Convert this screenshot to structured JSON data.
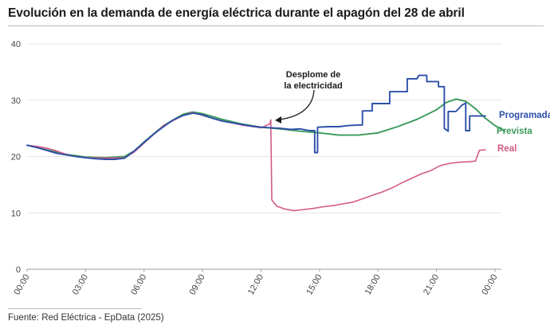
{
  "title": "Evolución en la demanda de energía eléctrica durante el apagón del 28 de abril",
  "source": "Fuente: Red Eléctrica - EpData (2025)",
  "chart_data": {
    "type": "line",
    "x_ticks": [
      "00:00",
      "03:00",
      "06:00",
      "09:00",
      "12:00",
      "15:00",
      "18:00",
      "21:00",
      "00:00"
    ],
    "x_range_hours": [
      0,
      24
    ],
    "y_ticks": [
      "0",
      "10",
      "20",
      "30",
      "40"
    ],
    "ylim": [
      0,
      40
    ],
    "grid": "horizontal",
    "annotation": {
      "lines": [
        "Desplome de",
        "la electricidad"
      ],
      "at_hour": 12.5
    },
    "series": [
      {
        "name": "Programada",
        "color": "#2d4fa8",
        "points": [
          [
            0,
            22.0
          ],
          [
            0.5,
            21.6
          ],
          [
            1,
            21.1
          ],
          [
            1.5,
            20.6
          ],
          [
            2,
            20.3
          ],
          [
            2.5,
            20.0
          ],
          [
            3,
            19.8
          ],
          [
            3.5,
            19.6
          ],
          [
            4,
            19.5
          ],
          [
            4.5,
            19.5
          ],
          [
            5,
            19.7
          ],
          [
            5.5,
            21.0
          ],
          [
            6,
            22.5
          ],
          [
            6.5,
            24.0
          ],
          [
            7,
            25.3
          ],
          [
            7.5,
            26.5
          ],
          [
            8,
            27.3
          ],
          [
            8.5,
            27.7
          ],
          [
            9,
            27.4
          ],
          [
            9.5,
            26.8
          ],
          [
            10,
            26.3
          ],
          [
            10.5,
            26.0
          ],
          [
            11,
            25.7
          ],
          [
            11.5,
            25.4
          ],
          [
            12,
            25.2
          ],
          [
            12.5,
            25.1
          ],
          [
            13,
            25.0
          ],
          [
            13.5,
            24.8
          ],
          [
            14,
            24.9
          ],
          [
            14.5,
            24.6
          ],
          [
            14.75,
            24.6
          ],
          [
            14.75,
            20.7
          ],
          [
            14.9,
            20.7
          ],
          [
            14.9,
            25.2
          ],
          [
            15.5,
            25.3
          ],
          [
            16,
            25.3
          ],
          [
            16.5,
            25.5
          ],
          [
            17,
            25.6
          ],
          [
            17.2,
            25.6
          ],
          [
            17.2,
            28.1
          ],
          [
            17.7,
            28.1
          ],
          [
            17.7,
            29.4
          ],
          [
            18.6,
            29.4
          ],
          [
            18.6,
            31.5
          ],
          [
            19.5,
            31.5
          ],
          [
            19.5,
            33.8
          ],
          [
            20,
            33.8
          ],
          [
            20.1,
            34.4
          ],
          [
            20.5,
            34.4
          ],
          [
            20.5,
            33.3
          ],
          [
            21.1,
            33.3
          ],
          [
            21.1,
            32.4
          ],
          [
            21.4,
            32.4
          ],
          [
            21.4,
            25.0
          ],
          [
            21.6,
            24.5
          ],
          [
            21.6,
            28.0
          ],
          [
            22,
            28.0
          ],
          [
            22.3,
            29.1
          ],
          [
            22.5,
            29.5
          ],
          [
            22.5,
            24.6
          ],
          [
            22.7,
            24.6
          ],
          [
            22.7,
            27.2
          ],
          [
            23.5,
            27.2
          ]
        ]
      },
      {
        "name": "Prevista",
        "color": "#3a9a5b",
        "points": [
          [
            0,
            22.0
          ],
          [
            1,
            21.2
          ],
          [
            2,
            20.4
          ],
          [
            3,
            19.9
          ],
          [
            4,
            19.8
          ],
          [
            5,
            20.0
          ],
          [
            5.5,
            21.0
          ],
          [
            6,
            22.6
          ],
          [
            7,
            25.5
          ],
          [
            8,
            27.5
          ],
          [
            8.5,
            27.9
          ],
          [
            9,
            27.6
          ],
          [
            10,
            26.6
          ],
          [
            11,
            25.8
          ],
          [
            12,
            25.2
          ],
          [
            13,
            24.9
          ],
          [
            14,
            24.5
          ],
          [
            15,
            24.2
          ],
          [
            15.5,
            24.0
          ],
          [
            16,
            23.8
          ],
          [
            17,
            23.8
          ],
          [
            18,
            24.2
          ],
          [
            19,
            25.3
          ],
          [
            20,
            26.6
          ],
          [
            21,
            28.3
          ],
          [
            21.5,
            29.6
          ],
          [
            22,
            30.2
          ],
          [
            22.5,
            29.8
          ],
          [
            23,
            28.5
          ],
          [
            23.5,
            26.8
          ],
          [
            24,
            25.5
          ],
          [
            24.5,
            24.5
          ]
        ]
      },
      {
        "name": "Real",
        "color": "#d45a86",
        "points": [
          [
            0,
            22.0
          ],
          [
            0.5,
            21.8
          ],
          [
            1,
            21.5
          ],
          [
            1.5,
            21.0
          ],
          [
            2,
            20.4
          ],
          [
            2.5,
            20.0
          ],
          [
            3,
            19.8
          ],
          [
            4,
            19.7
          ],
          [
            5,
            19.8
          ],
          [
            5.5,
            20.8
          ],
          [
            6,
            22.4
          ],
          [
            7,
            25.5
          ],
          [
            8,
            27.3
          ],
          [
            8.5,
            27.8
          ],
          [
            9,
            27.3
          ],
          [
            10,
            26.3
          ],
          [
            11,
            25.6
          ],
          [
            12,
            25.1
          ],
          [
            12.45,
            25.8
          ],
          [
            12.5,
            26.5
          ],
          [
            12.55,
            12.3
          ],
          [
            12.8,
            11.2
          ],
          [
            13.2,
            10.7
          ],
          [
            13.7,
            10.4
          ],
          [
            14.2,
            10.6
          ],
          [
            14.7,
            10.8
          ],
          [
            15.2,
            11.1
          ],
          [
            15.7,
            11.3
          ],
          [
            16.2,
            11.6
          ],
          [
            16.7,
            11.9
          ],
          [
            17.2,
            12.5
          ],
          [
            17.7,
            13.1
          ],
          [
            18.2,
            13.7
          ],
          [
            18.7,
            14.4
          ],
          [
            19.2,
            15.3
          ],
          [
            19.7,
            16.1
          ],
          [
            20.2,
            16.9
          ],
          [
            20.7,
            17.5
          ],
          [
            21.2,
            18.4
          ],
          [
            21.7,
            18.8
          ],
          [
            22.2,
            19.0
          ],
          [
            22.7,
            19.1
          ],
          [
            23.0,
            19.2
          ],
          [
            23.2,
            21.1
          ],
          [
            23.5,
            21.2
          ]
        ]
      }
    ]
  }
}
